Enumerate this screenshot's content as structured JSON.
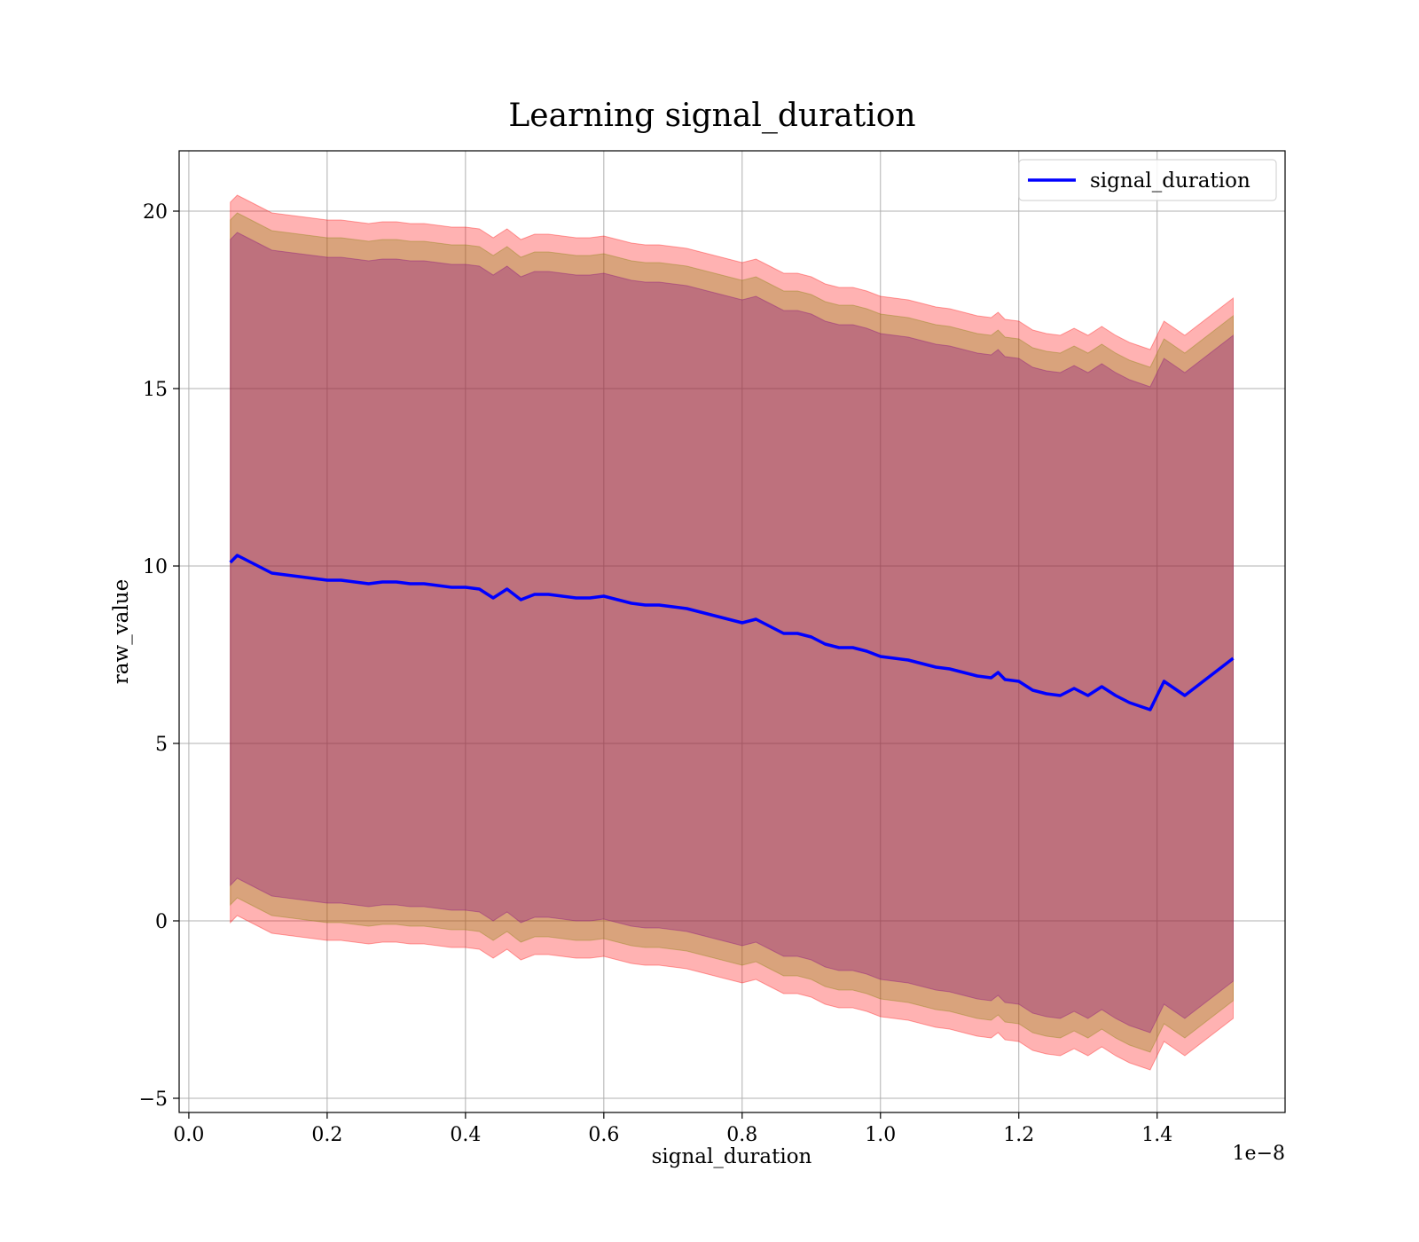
{
  "chart_data": {
    "type": "line",
    "title": "Learning signal_duration",
    "xlabel": "signal_duration",
    "ylabel": "raw_value",
    "x_offset_label": "1e−8",
    "xlim": [
      -0.014,
      1.585
    ],
    "ylim": [
      -5.4,
      21.7
    ],
    "x_ticks": [
      0.0,
      0.2,
      0.4,
      0.6,
      0.8,
      1.0,
      1.2,
      1.4
    ],
    "x_tick_labels": [
      "0.0",
      "0.2",
      "0.4",
      "0.6",
      "0.8",
      "1.0",
      "1.2",
      "1.4"
    ],
    "y_ticks": [
      -5,
      0,
      5,
      10,
      15,
      20
    ],
    "y_tick_labels": [
      "−5",
      "0",
      "5",
      "10",
      "15",
      "20"
    ],
    "grid": true,
    "legend": {
      "position": "top-right",
      "entries": [
        "signal_duration"
      ]
    },
    "series": [
      {
        "name": "signal_duration",
        "color": "#0000ff",
        "x": [
          0.06,
          0.07,
          0.08,
          0.09,
          0.1,
          0.12,
          0.14,
          0.16,
          0.18,
          0.2,
          0.22,
          0.24,
          0.26,
          0.28,
          0.3,
          0.32,
          0.34,
          0.36,
          0.38,
          0.4,
          0.42,
          0.44,
          0.46,
          0.48,
          0.5,
          0.52,
          0.54,
          0.56,
          0.58,
          0.6,
          0.62,
          0.64,
          0.66,
          0.68,
          0.7,
          0.72,
          0.74,
          0.76,
          0.78,
          0.8,
          0.82,
          0.84,
          0.86,
          0.88,
          0.9,
          0.92,
          0.94,
          0.96,
          0.98,
          1.0,
          1.02,
          1.04,
          1.06,
          1.08,
          1.1,
          1.12,
          1.14,
          1.16,
          1.17,
          1.18,
          1.2,
          1.22,
          1.24,
          1.26,
          1.28,
          1.3,
          1.32,
          1.34,
          1.36,
          1.39,
          1.41,
          1.44,
          1.51
        ],
        "y": [
          10.1,
          10.3,
          10.2,
          10.1,
          10.0,
          9.8,
          9.75,
          9.7,
          9.65,
          9.6,
          9.6,
          9.55,
          9.5,
          9.55,
          9.55,
          9.5,
          9.5,
          9.45,
          9.4,
          9.4,
          9.35,
          9.1,
          9.35,
          9.05,
          9.2,
          9.2,
          9.15,
          9.1,
          9.1,
          9.15,
          9.05,
          8.95,
          8.9,
          8.9,
          8.85,
          8.8,
          8.7,
          8.6,
          8.5,
          8.4,
          8.5,
          8.3,
          8.1,
          8.1,
          8.0,
          7.8,
          7.7,
          7.7,
          7.6,
          7.45,
          7.4,
          7.35,
          7.25,
          7.15,
          7.1,
          7.0,
          6.9,
          6.85,
          7.0,
          6.8,
          6.75,
          6.5,
          6.4,
          6.35,
          6.55,
          6.35,
          6.6,
          6.35,
          6.15,
          5.95,
          6.75,
          6.35,
          7.4
        ]
      }
    ],
    "bands": [
      {
        "name": "outer-band",
        "color": "#ff0000",
        "half_width": 10.15
      },
      {
        "name": "middle-band",
        "color": "#808000",
        "half_width": 9.65
      },
      {
        "name": "inner-band",
        "color": "#800080",
        "half_width": 9.1
      }
    ]
  }
}
